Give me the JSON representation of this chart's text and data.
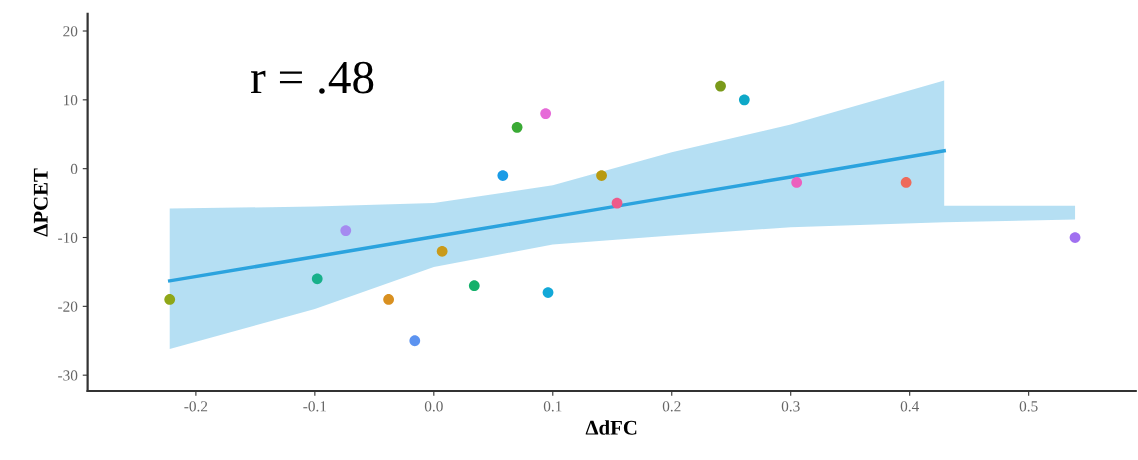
{
  "chart_data": {
    "type": "scatter",
    "xlabel": "ΔdFC",
    "ylabel": "ΔPCET",
    "annotations": [
      "r = .48"
    ],
    "xlim": [
      -0.291,
      0.59
    ],
    "ylim": [
      -32.3,
      22.5
    ],
    "xticks": [
      -0.2,
      -0.1,
      {
        "value": 0,
        "label": "0.0"
      },
      0.1,
      0.2,
      0.3,
      0.4,
      0.5
    ],
    "yticks": [
      -30,
      -20,
      -10,
      0,
      10,
      20
    ],
    "grid": false,
    "series": [
      {
        "type": "line",
        "marker": "none",
        "color": "#2ba3de",
        "x": [
          -0.222,
          -0.1,
          0.0,
          0.1,
          0.2,
          0.3,
          0.429,
          0.429,
          0.539
        ],
        "values": [
          -16.3,
          -12.8,
          -9.9,
          -7.0,
          -4.1,
          -1.2,
          2.6,
          null,
          null
        ],
        "lower": [
          -26.2,
          -20.4,
          -14.3,
          -11.0,
          -9.7,
          -8.5,
          -7.8,
          -7.8,
          -7.4
        ],
        "upper": [
          -5.8,
          -5.5,
          -5.0,
          -2.4,
          2.4,
          6.4,
          12.8,
          -5.4,
          -5.4
        ]
      },
      {
        "marker": "circle",
        "x": [
          -0.222,
          -0.098,
          -0.074,
          -0.038,
          -0.016,
          0.007,
          0.034,
          0.058,
          0.07,
          0.094,
          0.096,
          0.141,
          0.154,
          0.241,
          0.261,
          0.305,
          0.397,
          0.539
        ],
        "values": [
          -19,
          -16,
          -9,
          -19,
          -25,
          -12,
          -17,
          -1,
          6,
          8,
          -18,
          -1,
          -5,
          12,
          10,
          -2,
          -2,
          -10
        ],
        "colors": [
          "#8fa718",
          "#18b08a",
          "#a58af0",
          "#d99020",
          "#5c93f0",
          "#c99a1a",
          "#14b06a",
          "#1a9be6",
          "#3aaa35",
          "#e66bd8",
          "#12a8d8",
          "#b89a10",
          "#ee5a8a",
          "#7a9a1a",
          "#0ea8c8",
          "#ec5fbe",
          "#ee6a5a",
          "#a070f0"
        ]
      }
    ]
  }
}
